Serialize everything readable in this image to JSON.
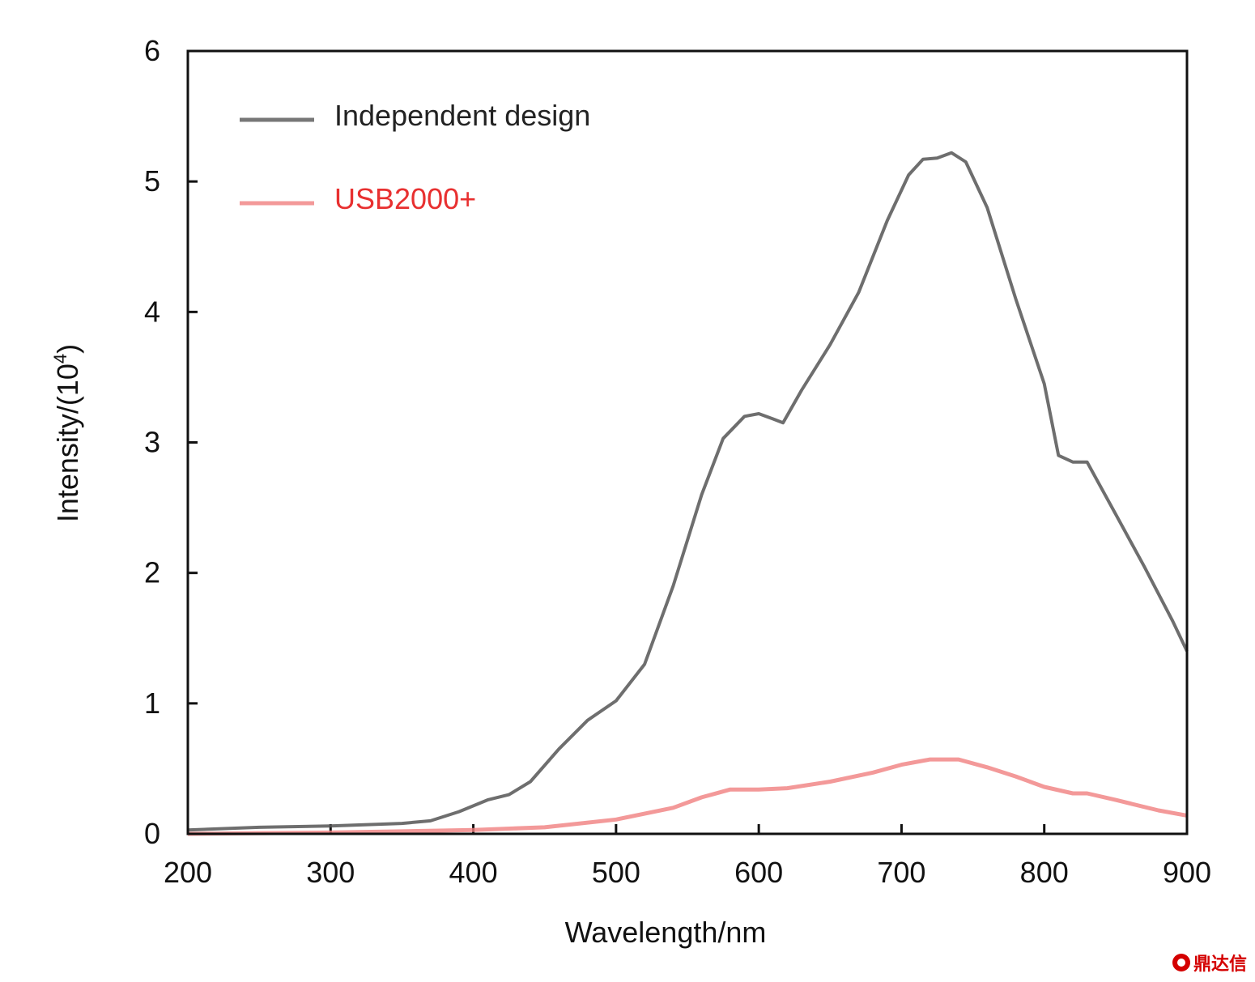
{
  "chart_data": {
    "type": "line",
    "xlabel": "Wavelength/nm",
    "ylabel_main": "Intensity/(10",
    "ylabel_sup": "4",
    "ylabel_end": ")",
    "xlim": [
      200,
      900
    ],
    "ylim": [
      0,
      6
    ],
    "xticks": [
      200,
      300,
      400,
      500,
      600,
      700,
      800,
      900
    ],
    "yticks": [
      0,
      1,
      2,
      3,
      4,
      5,
      6
    ],
    "grid": false,
    "legend_position": "top-left",
    "series": [
      {
        "name": "Independent design",
        "color": "#555555",
        "x": [
          200,
          250,
          300,
          350,
          370,
          390,
          410,
          425,
          440,
          460,
          480,
          500,
          520,
          540,
          560,
          575,
          590,
          600,
          610,
          617,
          630,
          650,
          670,
          690,
          705,
          715,
          725,
          735,
          745,
          760,
          780,
          800,
          810,
          820,
          830,
          850,
          870,
          890,
          900
        ],
        "y": [
          0.03,
          0.05,
          0.06,
          0.08,
          0.1,
          0.17,
          0.26,
          0.3,
          0.4,
          0.65,
          0.87,
          1.02,
          1.3,
          1.9,
          2.6,
          3.03,
          3.2,
          3.22,
          3.18,
          3.15,
          3.4,
          3.75,
          4.15,
          4.7,
          5.05,
          5.17,
          5.18,
          5.22,
          5.15,
          4.8,
          4.1,
          3.45,
          2.9,
          2.85,
          2.85,
          2.45,
          2.05,
          1.63,
          1.4
        ]
      },
      {
        "name": "USB2000+",
        "color": "#f08080",
        "x": [
          200,
          300,
          400,
          450,
          500,
          540,
          560,
          580,
          600,
          620,
          650,
          680,
          700,
          720,
          740,
          760,
          780,
          800,
          820,
          830,
          850,
          880,
          900
        ],
        "y": [
          0.0,
          0.01,
          0.03,
          0.05,
          0.11,
          0.2,
          0.28,
          0.34,
          0.34,
          0.35,
          0.4,
          0.47,
          0.53,
          0.57,
          0.57,
          0.51,
          0.44,
          0.36,
          0.31,
          0.31,
          0.26,
          0.18,
          0.14
        ]
      }
    ]
  },
  "watermark": {
    "text": "鼎达信"
  }
}
